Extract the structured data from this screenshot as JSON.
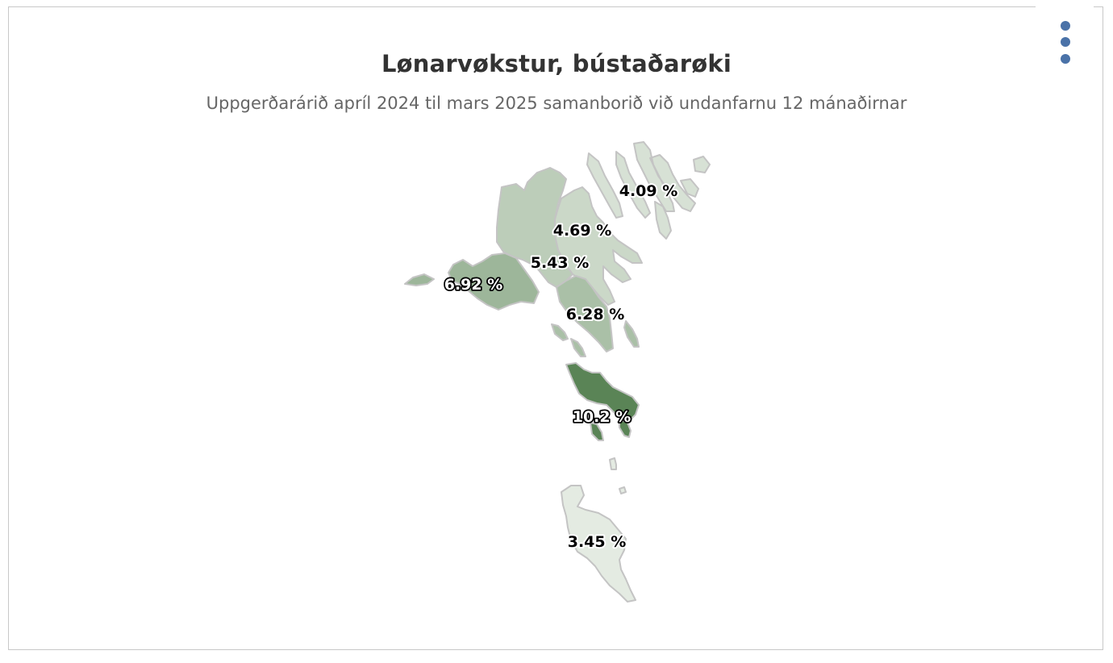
{
  "title": "Lønarvøkstur, bústaðarøki",
  "subtitle": "Uppgerðarárið apríl 2024 til mars 2025 samanborið við undanfarnu 12 mánaðirnar",
  "menu": {
    "icon": "more-vertical-icon"
  },
  "chart_data": {
    "type": "choropleth",
    "title": "Lønarvøkstur, bústaðarøki",
    "subtitle": "Uppgerðarárið apríl 2024 til mars 2025 samanborið við undanfarnu 12 mánaðirnar",
    "unit": "%",
    "regions": [
      {
        "id": "nordoyggjar",
        "label": "4.09 %",
        "value": 4.09
      },
      {
        "id": "eysturoy",
        "label": "4.69 %",
        "value": 4.69
      },
      {
        "id": "nordstreymoy",
        "label": "5.43 %",
        "value": 5.43
      },
      {
        "id": "vagar",
        "label": "6.92 %",
        "value": 6.92
      },
      {
        "id": "sudurstreymoy",
        "label": "6.28 %",
        "value": 6.28
      },
      {
        "id": "sandoy",
        "label": "10.2 %",
        "value": 10.2
      },
      {
        "id": "suduroy",
        "label": "3.45 %",
        "value": 3.45
      }
    ],
    "colors": {
      "min": "#e4ebe2",
      "max": "#5a8456",
      "border": "#c4c4c4"
    }
  }
}
